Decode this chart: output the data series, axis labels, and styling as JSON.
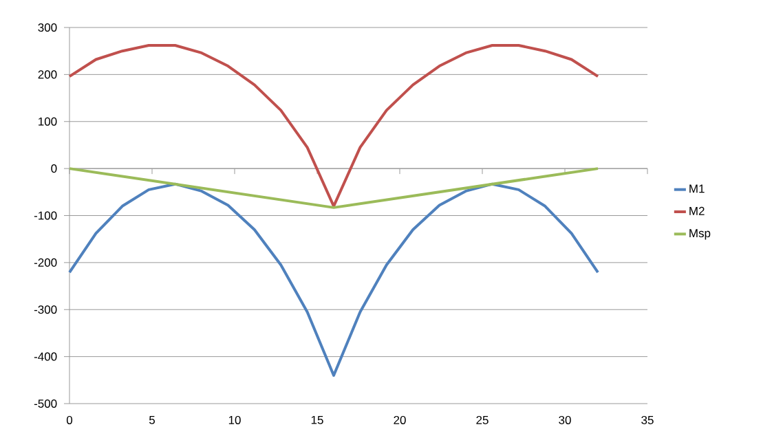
{
  "chart_data": {
    "type": "line",
    "x": [
      0,
      1.6,
      3.2,
      4.8,
      6.4,
      8.0,
      9.6,
      11.2,
      12.8,
      14.4,
      16,
      17.6,
      19.2,
      20.8,
      22.4,
      24.0,
      25.6,
      27.2,
      28.8,
      30.4,
      32
    ],
    "series": [
      {
        "name": "M1",
        "color": "#4f81bd",
        "values": [
          -221,
          -138,
          -80,
          -45,
          -33,
          -48,
          -78,
          -130,
          -205,
          -305,
          -440,
          -305,
          -205,
          -130,
          -78,
          -48,
          -33,
          -45,
          -80,
          -138,
          -221
        ]
      },
      {
        "name": "M2",
        "color": "#c0504d",
        "values": [
          196,
          232,
          250,
          262,
          262,
          246,
          218,
          178,
          124,
          45,
          -80,
          45,
          124,
          178,
          218,
          246,
          262,
          262,
          250,
          232,
          196
        ]
      },
      {
        "name": "Msp",
        "color": "#9bbb59",
        "x": [
          0,
          16,
          32
        ],
        "values": [
          0,
          -83,
          0
        ]
      }
    ],
    "xlim": [
      0,
      35
    ],
    "ylim": [
      -500,
      300
    ],
    "xticks": [
      0,
      5,
      10,
      15,
      20,
      25,
      30,
      35
    ],
    "yticks": [
      -500,
      -400,
      -300,
      -200,
      -100,
      0,
      100,
      200,
      300
    ],
    "grid": "y",
    "legend": "right",
    "marker": "none",
    "line_style": "solid"
  }
}
